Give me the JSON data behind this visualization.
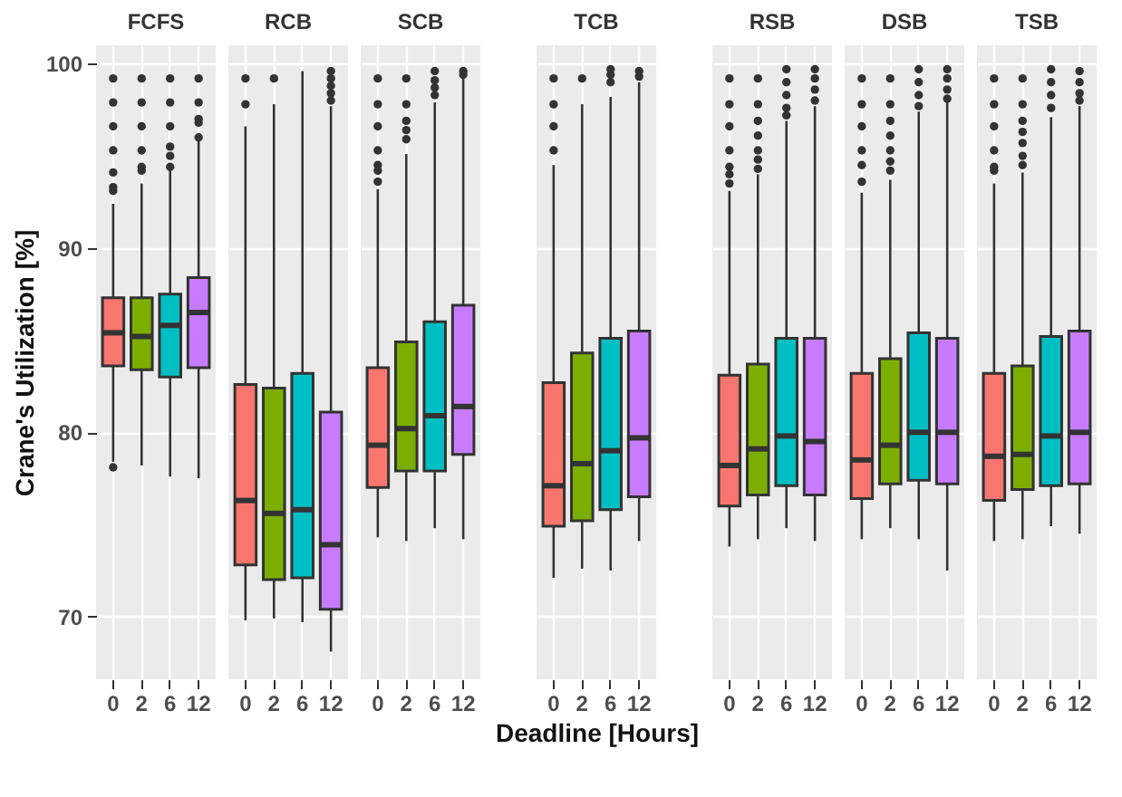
{
  "chart_data": [
    {
      "type": "box",
      "title": "FCFS",
      "ylabel": "Crane's Utilization [%]",
      "categories": [
        "0",
        "2",
        "6",
        "12"
      ],
      "colors": [
        "#f8766d",
        "#7cae00",
        "#00bfc4",
        "#c77cff"
      ],
      "ylim": [
        66.6,
        101
      ],
      "yticks": [
        70,
        80,
        90,
        100
      ],
      "grid": true,
      "boxes": [
        {
          "low": 78.4,
          "q1": 83.6,
          "median": 85.4,
          "q3": 87.3,
          "high": 92.4,
          "outliers": [
            78.1,
            93.1,
            93.3,
            94.1,
            95.3,
            96.6,
            97.9,
            99.2
          ]
        },
        {
          "low": 78.2,
          "q1": 83.4,
          "median": 85.2,
          "q3": 87.3,
          "high": 93.5,
          "outliers": [
            94.2,
            94.4,
            95.3,
            96.6,
            97.9,
            99.2
          ]
        },
        {
          "low": 77.6,
          "q1": 83.0,
          "median": 85.8,
          "q3": 87.5,
          "high": 94.3,
          "outliers": [
            94.4,
            95.0,
            95.5,
            96.6,
            97.9,
            99.2
          ]
        },
        {
          "low": 77.5,
          "q1": 83.5,
          "median": 86.5,
          "q3": 88.4,
          "high": 95.9,
          "outliers": [
            96.0,
            96.8,
            97.0,
            97.9,
            99.2
          ]
        }
      ]
    },
    {
      "type": "box",
      "title": "RCB",
      "categories": [
        "0",
        "2",
        "6",
        "12"
      ],
      "colors": [
        "#f8766d",
        "#7cae00",
        "#00bfc4",
        "#c77cff"
      ],
      "ylim": [
        66.6,
        101
      ],
      "yticks": [
        70,
        80,
        90,
        100
      ],
      "grid": true,
      "tick_labels": "x",
      "boxes": [
        {
          "low": 69.8,
          "q1": 72.8,
          "median": 76.3,
          "q3": 82.6,
          "high": 96.6,
          "outliers": [
            97.8,
            99.2
          ]
        },
        {
          "low": 69.9,
          "q1": 72.0,
          "median": 75.6,
          "q3": 82.4,
          "high": 97.8,
          "outliers": [
            99.2
          ]
        },
        {
          "low": 69.7,
          "q1": 72.1,
          "median": 75.8,
          "q3": 83.2,
          "high": 99.6
        },
        {
          "low": 68.1,
          "q1": 70.4,
          "median": 73.9,
          "q3": 81.1,
          "high": 97.7,
          "outliers": [
            98.0,
            98.4,
            98.8,
            99.2,
            99.6
          ]
        }
      ]
    },
    {
      "type": "box",
      "title": "SCB",
      "categories": [
        "0",
        "2",
        "6",
        "12"
      ],
      "colors": [
        "#f8766d",
        "#7cae00",
        "#00bfc4",
        "#c77cff"
      ],
      "ylim": [
        66.6,
        101
      ],
      "yticks": [
        70,
        80,
        90,
        100
      ],
      "grid": true,
      "tick_labels": "x",
      "boxes": [
        {
          "low": 74.3,
          "q1": 77.0,
          "median": 79.3,
          "q3": 83.5,
          "high": 93.2,
          "outliers": [
            93.6,
            94.2,
            94.5,
            95.3,
            96.6,
            97.8,
            99.2
          ]
        },
        {
          "low": 74.1,
          "q1": 77.9,
          "median": 80.2,
          "q3": 84.9,
          "high": 95.1,
          "outliers": [
            95.9,
            96.4,
            96.9,
            97.8,
            99.2
          ]
        },
        {
          "low": 74.8,
          "q1": 77.9,
          "median": 80.9,
          "q3": 86.0,
          "high": 97.9,
          "outliers": [
            98.3,
            98.7,
            99.1,
            99.6
          ]
        },
        {
          "low": 74.2,
          "q1": 78.8,
          "median": 81.4,
          "q3": 86.9,
          "high": 99.2,
          "outliers": [
            99.4,
            99.6
          ]
        }
      ]
    },
    {
      "type": "box",
      "title": "TCB",
      "xlabel": "Deadline [Hours]",
      "categories": [
        "0",
        "2",
        "6",
        "12"
      ],
      "colors": [
        "#f8766d",
        "#7cae00",
        "#00bfc4",
        "#c77cff"
      ],
      "ylim": [
        66.6,
        101
      ],
      "yticks": [
        70,
        80,
        90,
        100
      ],
      "grid": true,
      "tick_labels": "x",
      "boxes": [
        {
          "low": 72.1,
          "q1": 74.9,
          "median": 77.1,
          "q3": 82.7,
          "high": 94.5,
          "outliers": [
            95.3,
            96.6,
            97.8,
            99.2
          ]
        },
        {
          "low": 72.6,
          "q1": 75.2,
          "median": 78.3,
          "q3": 84.3,
          "high": 97.8,
          "outliers": [
            99.2
          ]
        },
        {
          "low": 72.5,
          "q1": 75.8,
          "median": 79.0,
          "q3": 85.1,
          "high": 98.2,
          "outliers": [
            99.0,
            99.4,
            99.7
          ]
        },
        {
          "low": 74.1,
          "q1": 76.5,
          "median": 79.7,
          "q3": 85.5,
          "high": 99.0,
          "outliers": [
            99.3,
            99.6
          ]
        }
      ]
    },
    {
      "type": "box",
      "title": "RSB",
      "categories": [
        "0",
        "2",
        "6",
        "12"
      ],
      "colors": [
        "#f8766d",
        "#7cae00",
        "#00bfc4",
        "#c77cff"
      ],
      "ylim": [
        66.6,
        101
      ],
      "yticks": [
        70,
        80,
        90,
        100
      ],
      "grid": true,
      "tick_labels": "x",
      "boxes": [
        {
          "low": 73.8,
          "q1": 76.0,
          "median": 78.2,
          "q3": 83.1,
          "high": 93.1,
          "outliers": [
            93.5,
            94.0,
            94.4,
            95.3,
            96.6,
            97.8,
            99.2
          ]
        },
        {
          "low": 74.2,
          "q1": 76.6,
          "median": 79.1,
          "q3": 83.7,
          "high": 94.0,
          "outliers": [
            94.3,
            94.8,
            95.3,
            96.1,
            96.9,
            97.8,
            99.2
          ]
        },
        {
          "low": 74.8,
          "q1": 77.1,
          "median": 79.8,
          "q3": 85.1,
          "high": 96.9,
          "outliers": [
            97.2,
            97.6,
            98.3,
            99.0,
            99.7
          ]
        },
        {
          "low": 74.1,
          "q1": 76.6,
          "median": 79.5,
          "q3": 85.1,
          "high": 97.7,
          "outliers": [
            98.0,
            98.6,
            99.2,
            99.7
          ]
        }
      ]
    },
    {
      "type": "box",
      "title": "DSB",
      "categories": [
        "0",
        "2",
        "6",
        "12"
      ],
      "colors": [
        "#f8766d",
        "#7cae00",
        "#00bfc4",
        "#c77cff"
      ],
      "ylim": [
        66.6,
        101
      ],
      "yticks": [
        70,
        80,
        90,
        100
      ],
      "grid": true,
      "tick_labels": "x",
      "boxes": [
        {
          "low": 74.2,
          "q1": 76.4,
          "median": 78.5,
          "q3": 83.2,
          "high": 93.0,
          "outliers": [
            93.6,
            94.5,
            95.3,
            96.6,
            97.8,
            99.2
          ]
        },
        {
          "low": 74.8,
          "q1": 77.2,
          "median": 79.3,
          "q3": 84.0,
          "high": 93.7,
          "outliers": [
            94.2,
            94.7,
            95.3,
            96.1,
            96.9,
            97.8,
            99.2
          ]
        },
        {
          "low": 74.2,
          "q1": 77.4,
          "median": 80.0,
          "q3": 85.4,
          "high": 97.4,
          "outliers": [
            97.7,
            98.3,
            99.0,
            99.7
          ]
        },
        {
          "low": 72.5,
          "q1": 77.2,
          "median": 80.0,
          "q3": 85.1,
          "high": 97.9,
          "outliers": [
            98.1,
            98.6,
            99.2,
            99.7
          ]
        }
      ]
    },
    {
      "type": "box",
      "title": "TSB",
      "categories": [
        "0",
        "2",
        "6",
        "12"
      ],
      "colors": [
        "#f8766d",
        "#7cae00",
        "#00bfc4",
        "#c77cff"
      ],
      "ylim": [
        66.6,
        101
      ],
      "yticks": [
        70,
        80,
        90,
        100
      ],
      "grid": true,
      "tick_labels": "x",
      "boxes": [
        {
          "low": 74.1,
          "q1": 76.3,
          "median": 78.7,
          "q3": 83.2,
          "high": 93.5,
          "outliers": [
            94.2,
            94.4,
            95.3,
            96.6,
            97.8,
            99.2
          ]
        },
        {
          "low": 74.2,
          "q1": 76.9,
          "median": 78.8,
          "q3": 83.6,
          "high": 94.1,
          "outliers": [
            94.5,
            95.0,
            95.7,
            96.3,
            96.9,
            97.8,
            99.2
          ]
        },
        {
          "low": 74.9,
          "q1": 77.1,
          "median": 79.8,
          "q3": 85.2,
          "high": 97.1,
          "outliers": [
            97.6,
            98.3,
            99.0,
            99.7
          ]
        },
        {
          "low": 74.5,
          "q1": 77.2,
          "median": 80.0,
          "q3": 85.5,
          "high": 97.7,
          "outliers": [
            98.0,
            98.4,
            99.0,
            99.6
          ]
        }
      ]
    }
  ]
}
